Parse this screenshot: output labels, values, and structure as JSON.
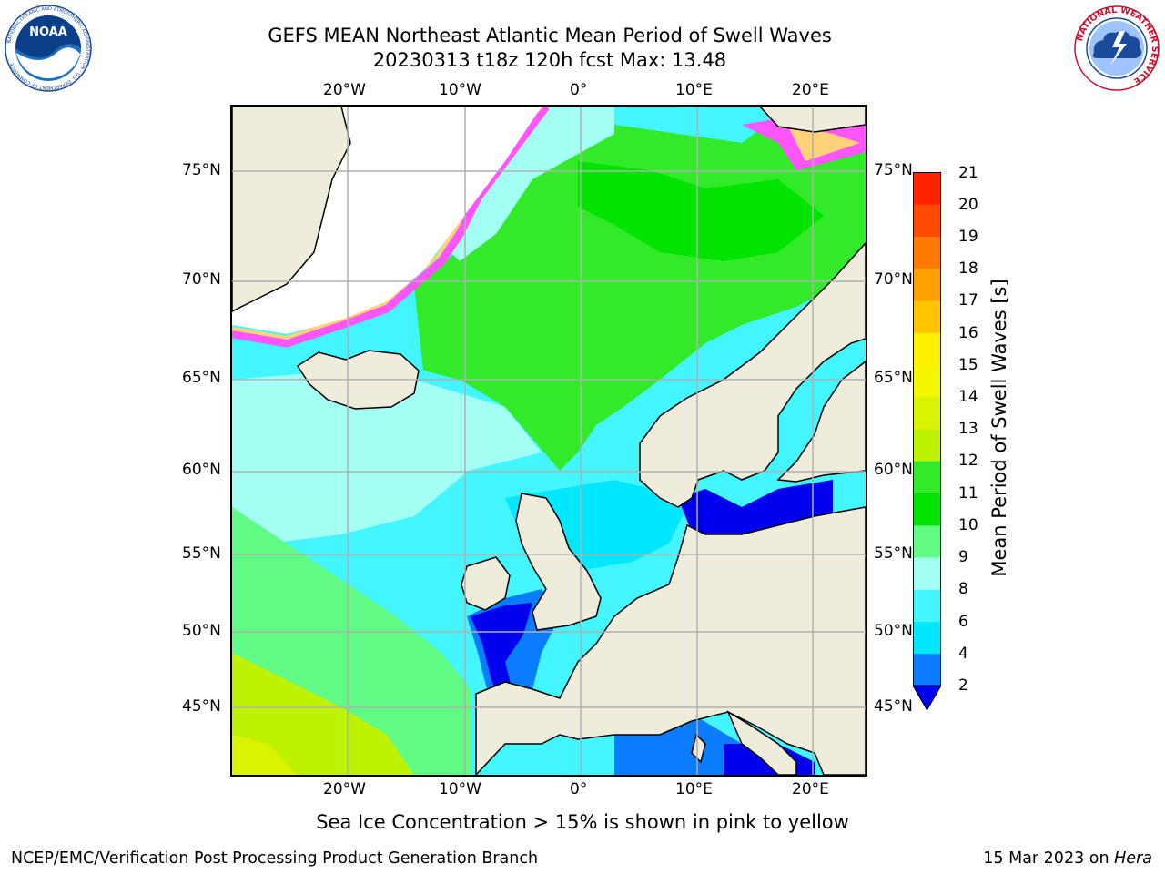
{
  "header": {
    "title_line1": "GEFS MEAN Northeast Atlantic Mean Period of Swell Waves",
    "title_line2": "20230313 t18z 120h fcst   Max: 13.48"
  },
  "logos": {
    "noaa_text": "NOAA",
    "noaa_ring_text": "NATIONAL OCEANIC AND ATMOSPHERIC ADMINISTRATION · U.S. DEPARTMENT OF COMMERCE",
    "nws_ring_text": "NATIONAL WEATHER SERVICE"
  },
  "map": {
    "lon_labels": [
      "20°W",
      "10°W",
      "0°",
      "10°E",
      "20°E"
    ],
    "lat_labels_left": [
      "75°N",
      "70°N",
      "65°N",
      "60°N",
      "55°N",
      "50°N",
      "45°N"
    ],
    "lat_labels_right": [
      "75°N",
      "70°N",
      "65°N",
      "60°N",
      "55°N",
      "50°N",
      "45°N"
    ],
    "colors": {
      "land": "#efecdc",
      "grid": "#b0b0b0",
      "coast": "#000000",
      "ice_pink": "#ff55ff",
      "ice_yellow": "#ffd27a"
    }
  },
  "colorbar": {
    "label": "Mean Period of Swell Waves [s]",
    "ticks": [
      "21",
      "20",
      "19",
      "18",
      "17",
      "16",
      "15",
      "14",
      "13",
      "12",
      "11",
      "10",
      "9",
      "8",
      "6",
      "4",
      "2"
    ],
    "bands": [
      {
        "from": 2,
        "to": 4,
        "color": "#0a7cff"
      },
      {
        "from": 4,
        "to": 6,
        "color": "#00e7ff"
      },
      {
        "from": 6,
        "to": 8,
        "color": "#42f5ff"
      },
      {
        "from": 8,
        "to": 9,
        "color": "#a3fff4"
      },
      {
        "from": 9,
        "to": 10,
        "color": "#5ffb84"
      },
      {
        "from": 10,
        "to": 11,
        "color": "#00e400"
      },
      {
        "from": 11,
        "to": 12,
        "color": "#33ea2a"
      },
      {
        "from": 12,
        "to": 13,
        "color": "#bef200"
      },
      {
        "from": 13,
        "to": 14,
        "color": "#daf300"
      },
      {
        "from": 14,
        "to": 15,
        "color": "#f6f600"
      },
      {
        "from": 15,
        "to": 16,
        "color": "#fff100"
      },
      {
        "from": 16,
        "to": 17,
        "color": "#ffc400"
      },
      {
        "from": 17,
        "to": 18,
        "color": "#ffa000"
      },
      {
        "from": 18,
        "to": 19,
        "color": "#ff7a00"
      },
      {
        "from": 19,
        "to": 20,
        "color": "#ff4a00"
      },
      {
        "from": 20,
        "to": 21,
        "color": "#ff2400"
      }
    ],
    "extend_color": "#0000ef"
  },
  "caption": "Sea Ice Concentration > 15% is shown in pink to yellow",
  "footer": {
    "left": "NCEP/EMC/Verification Post Processing Product Generation Branch",
    "right_date": "15 Mar 2023 on ",
    "right_machine": "Hera"
  }
}
